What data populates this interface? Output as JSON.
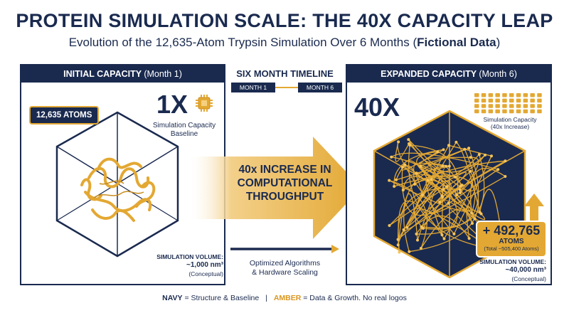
{
  "header": {
    "title": "PROTEIN SIMULATION SCALE: THE 40X CAPACITY LEAP",
    "subtitle_main": "Evolution of the 12,635-Atom Trypsin Simulation Over 6 Months (",
    "subtitle_bold": "Fictional Data",
    "subtitle_end": ")"
  },
  "initial": {
    "heading": "INITIAL CAPACITY",
    "heading_sub": "(Month 1)",
    "atoms_label": "12,635 ATOMS",
    "multiplier": "1X",
    "capacity_caption_1": "Simulation Capacity",
    "capacity_caption_2": "Baseline",
    "volume_label": "SIMULATION VOLUME:",
    "volume_value": "~1,000 nm³",
    "volume_note": "(Conceptual)"
  },
  "timeline": {
    "title": "SIX MONTH TIMELINE",
    "start": "MONTH 1",
    "end": "MONTH 6",
    "arrow_line1": "40x INCREASE IN",
    "arrow_line2": "COMPUTATIONAL",
    "arrow_line3": "THROUGHPUT",
    "method_line1": "Optimized Algorithms",
    "method_line2": "& Hardware Scaling"
  },
  "expanded": {
    "heading": "EXPANDED CAPACITY",
    "heading_sub": "(Month 6)",
    "multiplier": "40X",
    "capacity_caption_1": "Simulation Capacity",
    "capacity_caption_2": "(40x Increase)",
    "growth_value": "+ 492,765",
    "growth_unit": "ATOMS",
    "growth_total": "(Total ~505,400 Atoms)",
    "volume_label": "SIMULATION VOLUME:",
    "volume_value": "~40,000 nm³",
    "volume_note": "(Conceptual)",
    "chip_count": 40
  },
  "legend": {
    "navy": "NAVY",
    "navy_text": "= Structure & Baseline",
    "separator": "|",
    "amber": "AMBER",
    "amber_text": "= Data & Growth. No real logos"
  },
  "colors": {
    "navy": "#1a2a4f",
    "amber": "#e3a833"
  }
}
